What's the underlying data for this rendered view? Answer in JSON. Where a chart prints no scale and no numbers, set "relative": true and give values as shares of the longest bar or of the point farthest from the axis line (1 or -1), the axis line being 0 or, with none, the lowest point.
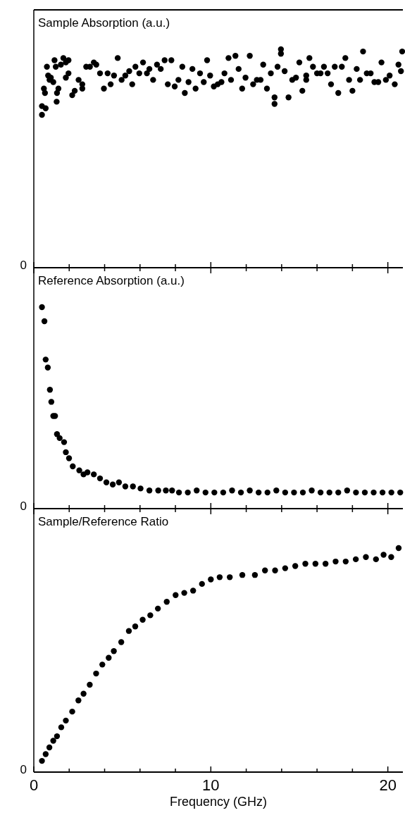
{
  "chart_data": [
    {
      "type": "scatter",
      "title": "Sample Absorption (a.u.)",
      "relative": true,
      "marker": "circle",
      "tick_labels": false,
      "annotations": [
        "0"
      ],
      "xlim": [
        0,
        20.85
      ],
      "xticks": [
        0,
        {
          "value": 2,
          "label": null
        },
        {
          "value": 4,
          "label": null
        },
        {
          "value": 6,
          "label": null
        },
        {
          "value": 8,
          "label": null
        },
        10,
        {
          "value": 12,
          "label": null
        },
        {
          "value": 14,
          "label": null
        },
        {
          "value": 16,
          "label": null
        },
        {
          "value": 18,
          "label": null
        },
        20
      ],
      "series": [
        {
          "color": "#000000",
          "x": [
            0.46,
            0.46,
            0.67,
            0.57,
            0.63,
            0.74,
            0.81,
            0.89,
            0.96,
            1.1,
            1.17,
            1.24,
            1.29,
            1.31,
            1.39,
            1.53,
            1.67,
            1.81,
            1.81,
            1.96,
            1.96,
            2.17,
            2.31,
            2.53,
            2.74,
            2.74,
            2.96,
            3.17,
            3.39,
            3.53,
            3.74,
            3.96,
            4.17,
            4.34,
            4.53,
            4.74,
            4.96,
            5.17,
            5.39,
            5.56,
            5.74,
            5.96,
            6.17,
            6.39,
            6.53,
            6.74,
            6.96,
            7.17,
            7.39,
            7.57,
            7.77,
            7.96,
            8.17,
            8.39,
            8.53,
            8.74,
            8.96,
            9.14,
            9.39,
            9.6,
            9.79,
            9.96,
            10.17,
            10.39,
            10.6,
            10.77,
            11.0,
            11.14,
            11.39,
            11.57,
            11.77,
            11.96,
            12.2,
            12.39,
            12.6,
            12.81,
            12.96,
            13.17,
            13.39,
            13.6,
            13.6,
            13.77,
            13.96,
            13.96,
            14.17,
            14.39,
            14.6,
            14.81,
            15.0,
            15.17,
            15.39,
            15.39,
            15.57,
            15.77,
            16.0,
            16.2,
            16.39,
            16.6,
            16.79,
            17.0,
            17.2,
            17.4,
            17.6,
            17.81,
            18.0,
            18.24,
            18.43,
            18.6,
            18.81,
            19.03,
            19.24,
            19.46,
            19.64,
            19.89,
            20.1,
            20.39,
            20.6,
            20.74,
            20.81
          ],
          "values": [
            0.7,
            0.74,
            0.73,
            0.82,
            0.8,
            0.92,
            0.88,
            0.86,
            0.87,
            0.85,
            0.95,
            0.92,
            0.76,
            0.8,
            0.82,
            0.93,
            0.96,
            0.94,
            0.87,
            0.95,
            0.89,
            0.79,
            0.81,
            0.86,
            0.82,
            0.84,
            0.92,
            0.92,
            0.94,
            0.93,
            0.89,
            0.82,
            0.89,
            0.84,
            0.88,
            0.96,
            0.86,
            0.88,
            0.9,
            0.84,
            0.92,
            0.89,
            0.94,
            0.89,
            0.91,
            0.86,
            0.93,
            0.91,
            0.95,
            0.84,
            0.95,
            0.83,
            0.86,
            0.92,
            0.8,
            0.85,
            0.91,
            0.82,
            0.89,
            0.85,
            0.95,
            0.88,
            0.83,
            0.84,
            0.85,
            0.89,
            0.96,
            0.86,
            0.97,
            0.91,
            0.82,
            0.87,
            0.97,
            0.84,
            0.86,
            0.86,
            0.93,
            0.82,
            0.89,
            0.75,
            0.78,
            0.92,
            1.0,
            0.98,
            0.9,
            0.78,
            0.86,
            0.87,
            0.94,
            0.81,
            0.86,
            0.88,
            0.96,
            0.92,
            0.89,
            0.89,
            0.92,
            0.89,
            0.84,
            0.92,
            0.8,
            0.92,
            0.96,
            0.86,
            0.81,
            0.91,
            0.86,
            0.99,
            0.89,
            0.89,
            0.85,
            0.85,
            0.94,
            0.86,
            0.88,
            0.84,
            0.93,
            0.9,
            0.99
          ]
        }
      ]
    },
    {
      "type": "scatter",
      "title": "Reference Absorption (a.u.)",
      "relative": true,
      "marker": "circle",
      "tick_labels": false,
      "annotations": [
        "0"
      ],
      "xlim": [
        0,
        20.85
      ],
      "xticks": [
        0,
        {
          "value": 2,
          "label": null
        },
        {
          "value": 4,
          "label": null
        },
        {
          "value": 6,
          "label": null
        },
        {
          "value": 8,
          "label": null
        },
        10,
        {
          "value": 12,
          "label": null
        },
        {
          "value": 14,
          "label": null
        },
        {
          "value": 16,
          "label": null
        },
        {
          "value": 18,
          "label": null
        },
        20
      ],
      "series": [
        {
          "color": "#000000",
          "x": [
            0.46,
            0.6,
            0.67,
            0.79,
            0.91,
            0.99,
            1.1,
            1.2,
            1.31,
            1.46,
            1.71,
            1.81,
            1.99,
            2.2,
            2.57,
            2.81,
            3.03,
            3.39,
            3.74,
            4.1,
            4.46,
            4.81,
            5.17,
            5.6,
            6.03,
            6.53,
            7.03,
            7.46,
            7.81,
            8.2,
            8.7,
            9.2,
            9.7,
            10.2,
            10.7,
            11.2,
            11.7,
            12.2,
            12.7,
            13.2,
            13.7,
            14.2,
            14.7,
            15.2,
            15.7,
            16.2,
            16.7,
            17.2,
            17.7,
            18.2,
            18.7,
            19.2,
            19.7,
            20.2,
            20.7
          ],
          "values": [
            1.0,
            0.93,
            0.74,
            0.7,
            0.59,
            0.53,
            0.46,
            0.46,
            0.37,
            0.35,
            0.33,
            0.28,
            0.25,
            0.21,
            0.19,
            0.17,
            0.18,
            0.17,
            0.15,
            0.13,
            0.12,
            0.13,
            0.11,
            0.11,
            0.1,
            0.09,
            0.09,
            0.09,
            0.09,
            0.08,
            0.08,
            0.09,
            0.08,
            0.08,
            0.08,
            0.09,
            0.08,
            0.09,
            0.08,
            0.08,
            0.09,
            0.08,
            0.08,
            0.08,
            0.09,
            0.08,
            0.08,
            0.08,
            0.09,
            0.08,
            0.08,
            0.08,
            0.08,
            0.08,
            0.08
          ]
        }
      ]
    },
    {
      "type": "scatter",
      "title": "Sample/Reference Ratio",
      "xlabel": "Frequency (GHz)",
      "relative": true,
      "marker": "circle",
      "tick_labels": "x",
      "annotations": [
        "0"
      ],
      "xlim": [
        0,
        20.85
      ],
      "xticks": [
        0,
        {
          "value": 2,
          "label": null
        },
        {
          "value": 4,
          "label": null
        },
        {
          "value": 6,
          "label": null
        },
        {
          "value": 8,
          "label": null
        },
        10,
        {
          "value": 12,
          "label": null
        },
        {
          "value": 14,
          "label": null
        },
        {
          "value": 16,
          "label": null
        },
        {
          "value": 18,
          "label": null
        },
        20
      ],
      "series": [
        {
          "color": "#000000",
          "x": [
            0.46,
            0.67,
            0.88,
            1.1,
            1.31,
            1.55,
            1.81,
            2.17,
            2.52,
            2.81,
            3.16,
            3.52,
            3.87,
            4.23,
            4.52,
            4.94,
            5.37,
            5.73,
            6.15,
            6.58,
            7.01,
            7.51,
            8.01,
            8.5,
            9.0,
            9.5,
            10.0,
            10.5,
            11.07,
            11.78,
            12.49,
            13.06,
            13.63,
            14.2,
            14.77,
            15.34,
            15.91,
            16.48,
            17.05,
            17.62,
            18.19,
            18.76,
            19.33,
            19.76,
            20.19,
            20.61
          ],
          "values": [
            0.05,
            0.08,
            0.11,
            0.14,
            0.16,
            0.2,
            0.23,
            0.27,
            0.32,
            0.35,
            0.39,
            0.44,
            0.48,
            0.51,
            0.54,
            0.58,
            0.63,
            0.65,
            0.68,
            0.7,
            0.73,
            0.76,
            0.79,
            0.8,
            0.81,
            0.84,
            0.86,
            0.87,
            0.87,
            0.88,
            0.88,
            0.9,
            0.9,
            0.91,
            0.92,
            0.93,
            0.93,
            0.93,
            0.94,
            0.94,
            0.95,
            0.96,
            0.95,
            0.97,
            0.96,
            1.0
          ]
        }
      ]
    }
  ]
}
